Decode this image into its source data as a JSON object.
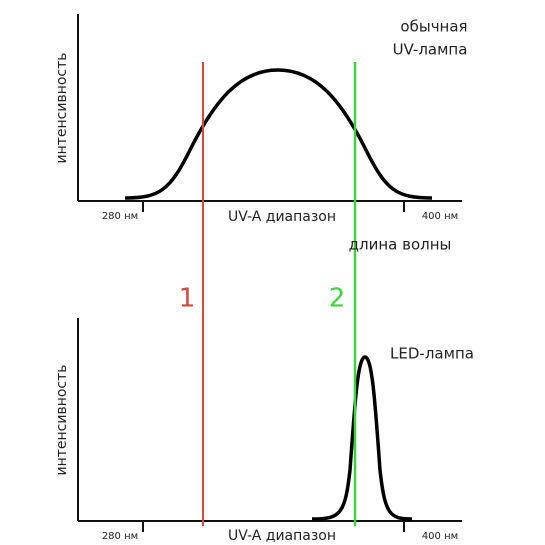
{
  "top_panel": {
    "y_label": "интенсивность",
    "lamp_label": [
      "обычная",
      "UV-лампа"
    ],
    "tick_left": "280 нм",
    "tick_right": "400 нм",
    "range_label": "UV-A диапазон"
  },
  "axis_caption": "длина волны",
  "markers": [
    "1",
    "2"
  ],
  "bottom_panel": {
    "y_label": "интенсивность",
    "lamp_label": "LED-лампа",
    "tick_left": "280 нм",
    "tick_right": "400 нм",
    "range_label": "UV-A диапазон"
  }
}
